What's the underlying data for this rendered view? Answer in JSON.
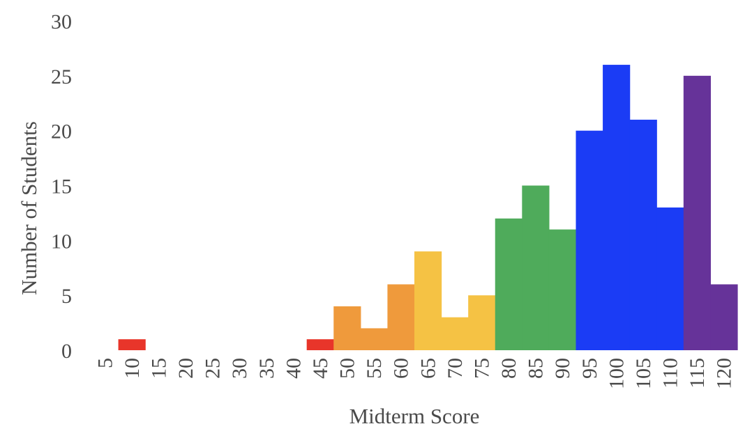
{
  "chart_data": {
    "type": "bar",
    "xlabel": "Midterm Score",
    "ylabel": "Number of Students",
    "ylim": [
      0,
      30
    ],
    "yticks": [
      "0",
      "5",
      "10",
      "15",
      "20",
      "25",
      "30"
    ],
    "grid": false,
    "categories": [
      "5",
      "10",
      "15",
      "20",
      "25",
      "30",
      "35",
      "40",
      "45",
      "50",
      "55",
      "60",
      "65",
      "70",
      "75",
      "80",
      "85",
      "90",
      "95",
      "100",
      "105",
      "110",
      "115",
      "120"
    ],
    "values": [
      0,
      1,
      0,
      0,
      0,
      0,
      0,
      0,
      1,
      4,
      2,
      6,
      9,
      3,
      5,
      12,
      15,
      11,
      20,
      26,
      21,
      13,
      25,
      6
    ],
    "bar_colors": [
      "#e8352a",
      "#e8352a",
      "#e8352a",
      "#e8352a",
      "#e8352a",
      "#e8352a",
      "#e8352a",
      "#e8352a",
      "#e8352a",
      "#ef9a3c",
      "#ef9a3c",
      "#ef9a3c",
      "#f5c244",
      "#f5c244",
      "#f5c244",
      "#4fab5b",
      "#4fab5b",
      "#4fab5b",
      "#1b3cf5",
      "#1b3cf5",
      "#1b3cf5",
      "#1b3cf5",
      "#663399",
      "#663399"
    ]
  }
}
